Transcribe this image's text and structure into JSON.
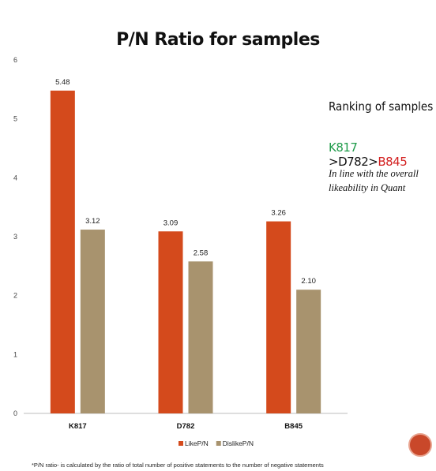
{
  "chart_data": {
    "type": "bar",
    "title": "P/N Ratio for samples",
    "categories": [
      "K817",
      "D782",
      "B845"
    ],
    "series": [
      {
        "name": "LikeP/N",
        "values": [
          5.48,
          3.09,
          3.26
        ],
        "labels": [
          "5.48",
          "3.09",
          "3.26"
        ],
        "color": "#d44a1c"
      },
      {
        "name": "DislikeP/N",
        "values": [
          3.12,
          2.58,
          2.1
        ],
        "labels": [
          "3.12",
          "2.58",
          "2.10"
        ],
        "color": "#a8936e"
      }
    ],
    "ylim": [
      0,
      6
    ],
    "yticks": [
      "0",
      "1",
      "2",
      "3",
      "4",
      "5",
      "6"
    ],
    "grid": false,
    "legend_position": "bottom"
  },
  "ranking": {
    "title": "Ranking of samples",
    "first": "K817",
    "sep1": " >",
    "second": "D782",
    "sep2": ">",
    "third": "B845",
    "note": "In line with the overall likeability in Quant"
  },
  "footnote": "*P/N ratio- is calculated by the ratio of  total  number of positive statements to the number of negative statements",
  "colors": {
    "accent": "#d44a1c",
    "secondary": "#a8936e",
    "positive": "#1f9b4a",
    "negative": "#d32020"
  }
}
